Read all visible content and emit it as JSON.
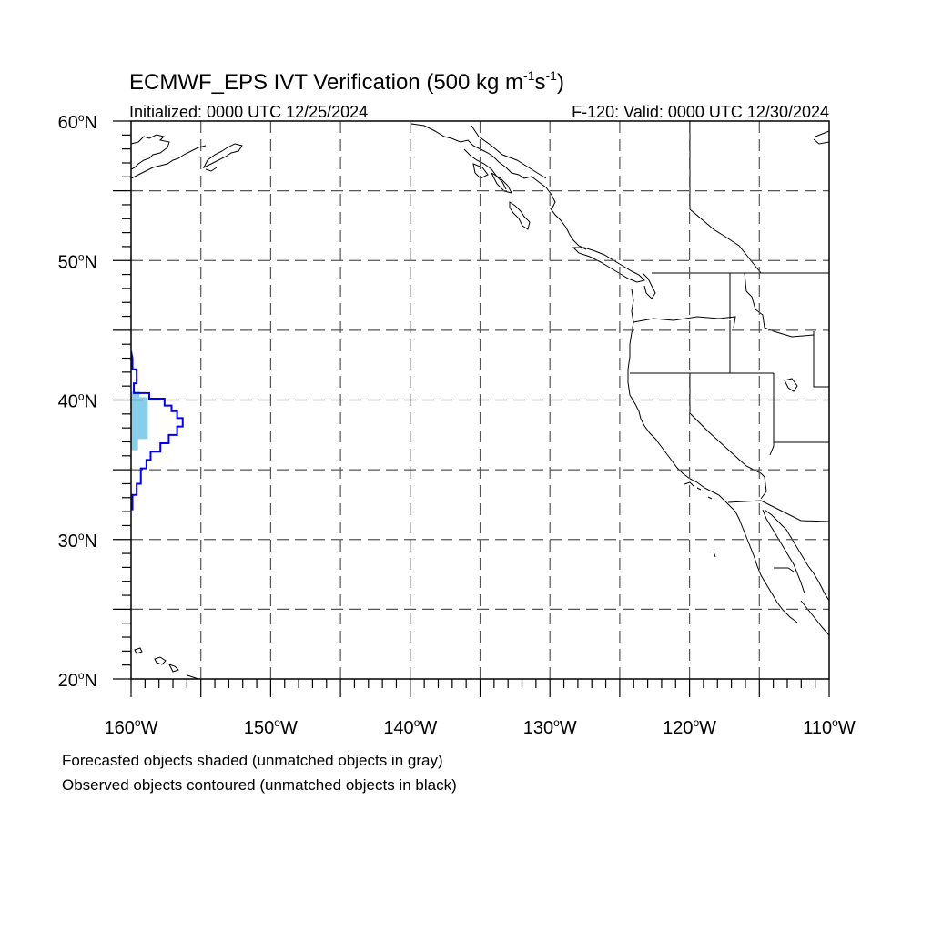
{
  "title": {
    "main": "ECMWF_EPS IVT Verification (500 kg m",
    "sup1": "-1",
    "mid": "s",
    "sup2": "-1",
    "end": ")"
  },
  "subtitle_left": "Initialized: 0000 UTC 12/25/2024",
  "subtitle_right": "F-120: Valid: 0000 UTC 12/30/2024",
  "lat_labels": [
    {
      "deg": "60",
      "hemi": "N",
      "lat": 60
    },
    {
      "deg": "50",
      "hemi": "N",
      "lat": 50
    },
    {
      "deg": "40",
      "hemi": "N",
      "lat": 40
    },
    {
      "deg": "30",
      "hemi": "N",
      "lat": 30
    },
    {
      "deg": "20",
      "hemi": "N",
      "lat": 20
    }
  ],
  "lon_labels": [
    {
      "deg": "160",
      "hemi": "W",
      "lon": -160
    },
    {
      "deg": "150",
      "hemi": "W",
      "lon": -150
    },
    {
      "deg": "140",
      "hemi": "W",
      "lon": -140
    },
    {
      "deg": "130",
      "hemi": "W",
      "lon": -130
    },
    {
      "deg": "120",
      "hemi": "W",
      "lon": -120
    },
    {
      "deg": "110",
      "hemi": "W",
      "lon": -110
    }
  ],
  "map_extent": {
    "lon_min": -160,
    "lon_max": -110,
    "lat_min": 20,
    "lat_max": 60
  },
  "grid_spacing_deg": 5,
  "colors": {
    "forecast_matched": "#87ceeb",
    "observed_matched": "#0000ee",
    "coastline": "#000000",
    "grid": "#555555"
  },
  "forecast_object_steps": [
    [
      -160.0,
      40.2,
      -159.4
    ],
    [
      -160.0,
      39.8,
      -158.8
    ],
    [
      -160.0,
      37.2,
      -158.8
    ],
    [
      -160.0,
      36.4,
      -159.5
    ],
    [
      -160.0,
      35.8,
      -160.0
    ],
    [
      -160.0,
      35.2,
      -160.0
    ]
  ],
  "observed_object_outline": [
    [
      -160.0,
      43.5
    ],
    [
      -159.9,
      43.0
    ],
    [
      -159.9,
      42.2
    ],
    [
      -159.6,
      42.2
    ],
    [
      -159.6,
      41.2
    ],
    [
      -159.8,
      41.2
    ],
    [
      -159.8,
      40.5
    ],
    [
      -158.7,
      40.5
    ],
    [
      -158.7,
      40.1
    ],
    [
      -157.6,
      40.1
    ],
    [
      -157.6,
      39.6
    ],
    [
      -157.1,
      39.6
    ],
    [
      -157.1,
      39.2
    ],
    [
      -156.7,
      39.2
    ],
    [
      -156.7,
      38.7
    ],
    [
      -156.3,
      38.7
    ],
    [
      -156.3,
      38.1
    ],
    [
      -156.7,
      38.1
    ],
    [
      -156.7,
      37.5
    ],
    [
      -157.3,
      37.5
    ],
    [
      -157.3,
      36.9
    ],
    [
      -157.9,
      36.9
    ],
    [
      -157.9,
      36.3
    ],
    [
      -158.6,
      36.3
    ],
    [
      -158.6,
      35.7
    ],
    [
      -158.9,
      35.7
    ],
    [
      -158.9,
      35.1
    ],
    [
      -159.3,
      35.1
    ],
    [
      -159.3,
      34.0
    ],
    [
      -159.6,
      34.0
    ],
    [
      -159.6,
      33.2
    ],
    [
      -159.9,
      33.2
    ],
    [
      -159.9,
      32.1
    ]
  ],
  "legend": {
    "line1": "Forecasted objects shaded (unmatched objects in gray)",
    "line2": "Observed objects contoured (unmatched objects in black)"
  }
}
